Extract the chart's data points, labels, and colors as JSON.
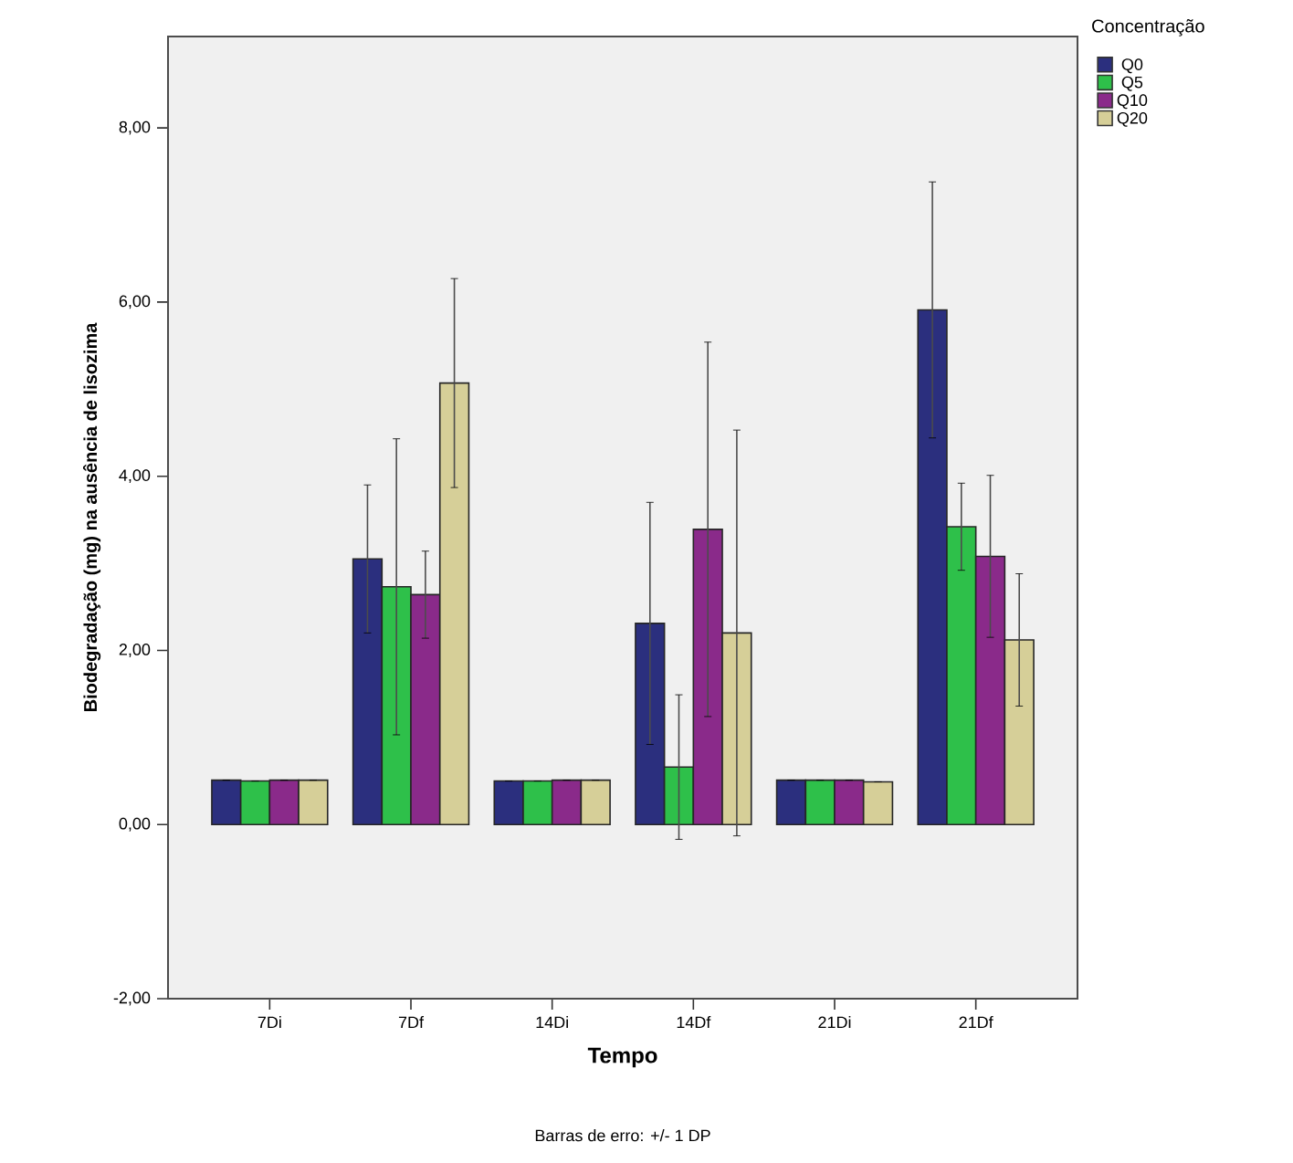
{
  "chart_data": {
    "type": "bar",
    "xlabel": "Tempo",
    "ylabel": "Biodegradação (mg) na ausência de lisozima",
    "legend_title": "Concentração",
    "categories": [
      "7Di",
      "7Df",
      "14Di",
      "14Df",
      "21Di",
      "21Df"
    ],
    "series": [
      {
        "name": "Q0",
        "color": "#2b2f7e",
        "values": [
          0.51,
          3.05,
          0.5,
          2.31,
          0.51,
          5.91
        ],
        "errors": [
          null,
          0.85,
          null,
          1.39,
          null,
          1.47
        ]
      },
      {
        "name": "Q5",
        "color": "#2ec04a",
        "values": [
          0.5,
          2.73,
          0.5,
          0.66,
          0.51,
          3.42
        ],
        "errors": [
          null,
          1.7,
          null,
          0.83,
          null,
          0.5
        ]
      },
      {
        "name": "Q10",
        "color": "#8a2a8a",
        "values": [
          0.51,
          2.64,
          0.51,
          3.39,
          0.51,
          3.08
        ],
        "errors": [
          null,
          0.5,
          null,
          2.15,
          null,
          0.93
        ]
      },
      {
        "name": "Q20",
        "color": "#d6cf98",
        "values": [
          0.51,
          5.07,
          0.51,
          2.2,
          0.49,
          2.12
        ],
        "errors": [
          null,
          1.2,
          null,
          2.33,
          null,
          0.76
        ]
      }
    ],
    "ylim": [
      -2,
      9.05
    ],
    "yticks": [
      {
        "value": -2,
        "label": "-2,00"
      },
      {
        "value": 0,
        "label": "0,00"
      },
      {
        "value": 2,
        "label": "2,00"
      },
      {
        "value": 4,
        "label": "4,00"
      },
      {
        "value": 6,
        "label": "6,00"
      },
      {
        "value": 8,
        "label": "8,00"
      }
    ],
    "legend": "top right",
    "annotations": [
      "Barras de erro: +/- 1 DP"
    ]
  }
}
